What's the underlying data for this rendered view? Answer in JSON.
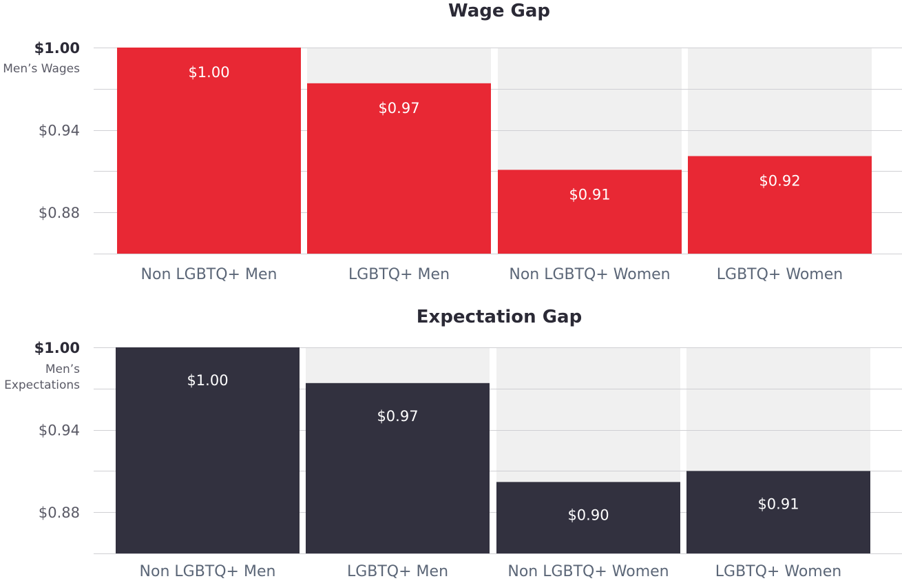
{
  "chart_data": [
    {
      "type": "bar",
      "title": "Wage Gap",
      "reference_label": [
        "Men’s Wages"
      ],
      "categories": [
        "Non LGBTQ+ Men",
        "LGBTQ+ Men",
        "Non LGBTQ+ Women",
        "LGBTQ+ Women"
      ],
      "values": [
        1.0,
        0.974,
        0.911,
        0.921
      ],
      "value_labels": [
        "$1.00",
        "$0.97",
        "$0.91",
        "$0.92"
      ],
      "y_tick_labels": [
        "$1.00",
        "$0.94",
        "$0.88"
      ],
      "y_ticks": [
        1.0,
        0.94,
        0.88
      ],
      "ylim": [
        0.85,
        1.0
      ],
      "gridlines": [
        1.0,
        0.97,
        0.94,
        0.91,
        0.88,
        0.85
      ],
      "grid": true,
      "bar_color": "#e82834",
      "background_bar_color": "#f0f0f0"
    },
    {
      "type": "bar",
      "title": "Expectation Gap",
      "reference_label": [
        "Men’s",
        "Expectations"
      ],
      "categories": [
        "Non LGBTQ+ Men",
        "LGBTQ+ Men",
        "Non LGBTQ+ Women",
        "LGBTQ+ Women"
      ],
      "values": [
        1.0,
        0.974,
        0.902,
        0.91
      ],
      "value_labels": [
        "$1.00",
        "$0.97",
        "$0.90",
        "$0.91"
      ],
      "y_tick_labels": [
        "$1.00",
        "$0.94",
        "$0.88"
      ],
      "y_ticks": [
        1.0,
        0.94,
        0.88
      ],
      "ylim": [
        0.85,
        1.0
      ],
      "gridlines": [
        1.0,
        0.97,
        0.94,
        0.91,
        0.88,
        0.85
      ],
      "grid": true,
      "bar_color": "#32313f",
      "background_bar_color": "#f0f0f0"
    }
  ]
}
